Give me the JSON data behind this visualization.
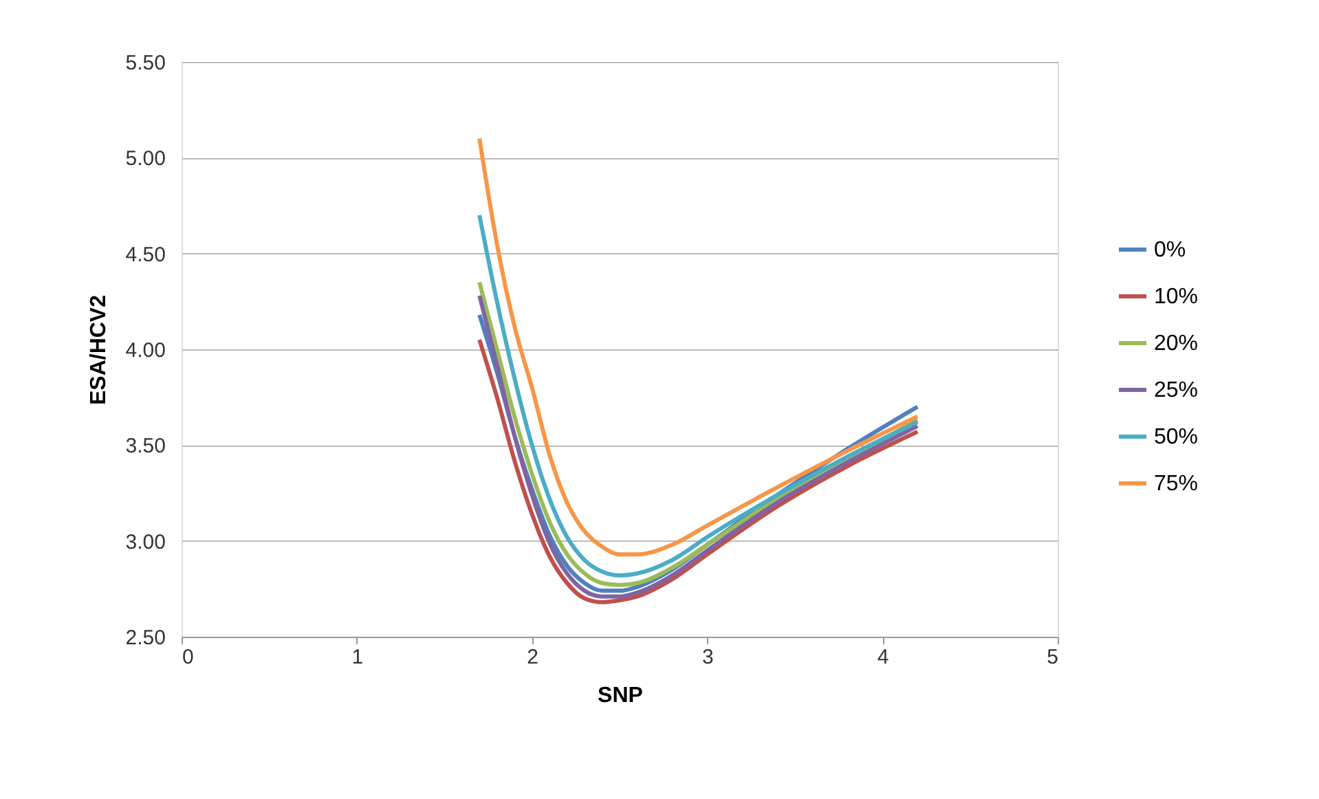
{
  "chart_data": {
    "type": "line",
    "xlabel": "SNP",
    "ylabel": "ESA/HCV2",
    "x": [
      1.7,
      1.8,
      1.9,
      2.0,
      2.1,
      2.2,
      2.3,
      2.4,
      2.5,
      2.6,
      2.8,
      3.0,
      3.4,
      3.8,
      4.2
    ],
    "series": [
      {
        "name": "0%",
        "color": "#4f81bd",
        "values": [
          4.18,
          3.88,
          3.55,
          3.27,
          3.03,
          2.87,
          2.78,
          2.74,
          2.74,
          2.76,
          2.85,
          2.98,
          3.24,
          3.48,
          3.7
        ]
      },
      {
        "name": "10%",
        "color": "#c0504d",
        "values": [
          4.05,
          3.75,
          3.42,
          3.14,
          2.92,
          2.78,
          2.7,
          2.68,
          2.69,
          2.71,
          2.8,
          2.93,
          3.18,
          3.39,
          3.57
        ]
      },
      {
        "name": "20%",
        "color": "#9bbb59",
        "values": [
          4.35,
          4.0,
          3.65,
          3.35,
          3.1,
          2.93,
          2.83,
          2.78,
          2.77,
          2.78,
          2.86,
          2.98,
          3.22,
          3.43,
          3.63
        ]
      },
      {
        "name": "25%",
        "color": "#8064a2",
        "values": [
          4.28,
          3.92,
          3.55,
          3.24,
          2.99,
          2.83,
          2.74,
          2.71,
          2.71,
          2.73,
          2.82,
          2.95,
          3.2,
          3.41,
          3.6
        ]
      },
      {
        "name": "50%",
        "color": "#4bacc6",
        "values": [
          4.7,
          4.25,
          3.85,
          3.5,
          3.22,
          3.02,
          2.9,
          2.84,
          2.82,
          2.83,
          2.9,
          3.02,
          3.24,
          3.44,
          3.62
        ]
      },
      {
        "name": "75%",
        "color": "#f79646",
        "values": [
          5.1,
          4.55,
          4.12,
          3.8,
          3.45,
          3.2,
          3.05,
          2.97,
          2.93,
          2.93,
          2.98,
          3.08,
          3.28,
          3.47,
          3.65
        ]
      }
    ],
    "xlim": [
      0,
      5
    ],
    "xticks": [
      0,
      1,
      2,
      3,
      4,
      5
    ],
    "ylim": [
      2.5,
      5.5
    ],
    "yticks": [
      {
        "value": 2.5,
        "label": "2.50"
      },
      {
        "value": 3,
        "label": "3.00"
      },
      {
        "value": 3.5,
        "label": "3.50"
      },
      {
        "value": 4,
        "label": "4.00"
      },
      {
        "value": 4.5,
        "label": "4.50"
      },
      {
        "value": 5,
        "label": "5.00"
      },
      {
        "value": 5.5,
        "label": "5.50"
      }
    ],
    "grid": "y",
    "legend": "right",
    "marker": "none",
    "line_style": "solid"
  }
}
